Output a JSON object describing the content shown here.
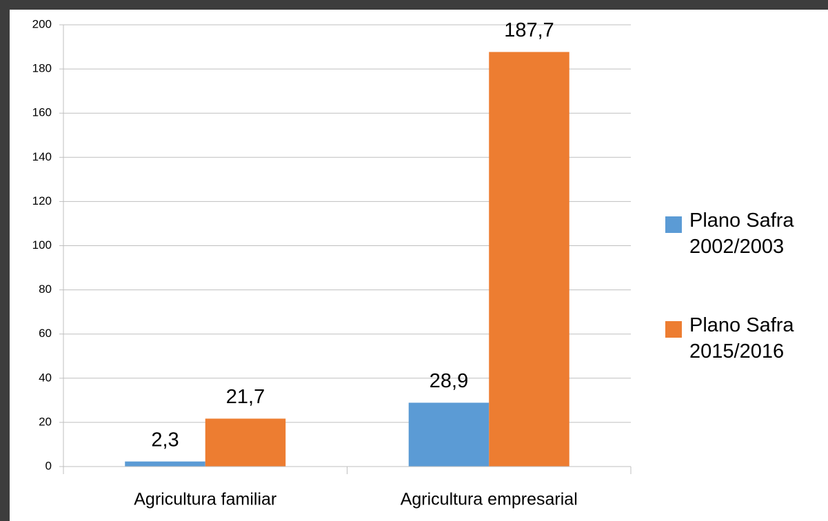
{
  "chart_data": {
    "type": "bar",
    "categories": [
      "Agricultura familiar",
      "Agricultura empresarial"
    ],
    "series": [
      {
        "name": "Plano Safra 2002/2003",
        "color": "#5b9bd5",
        "values": [
          2.3,
          28.9
        ],
        "value_labels": [
          "2,3",
          "28,9"
        ]
      },
      {
        "name": "Plano Safra 2015/2016",
        "color": "#ed7d31",
        "values": [
          21.7,
          187.7
        ],
        "value_labels": [
          "21,7",
          "187,7"
        ]
      }
    ],
    "ylim": [
      0,
      200
    ],
    "yticks": [
      0,
      20,
      40,
      60,
      80,
      100,
      120,
      140,
      160,
      180,
      200
    ],
    "grid": true,
    "legend": "right"
  }
}
